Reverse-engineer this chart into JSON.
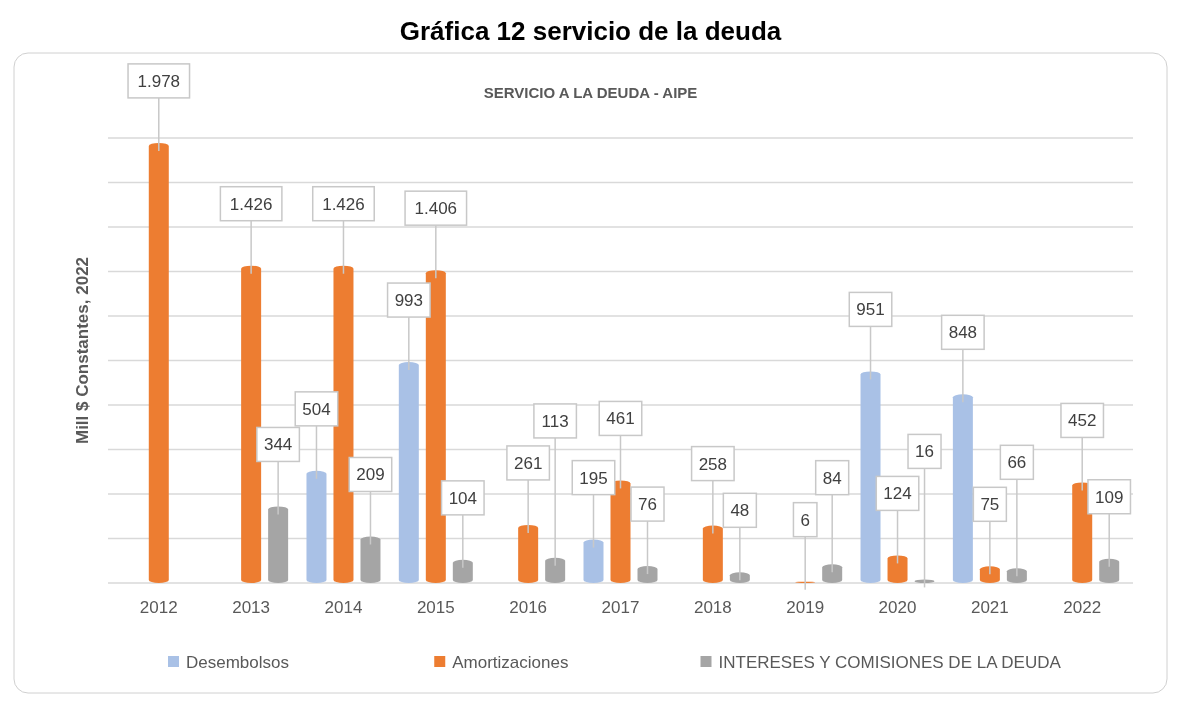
{
  "chart_data": {
    "type": "bar",
    "title": "Gráfica 12 servicio de la deuda",
    "subtitle": "SERVICIO A LA DEUDA - AIPE",
    "ylabel": "Mill $ Constantes, 2022",
    "categories": [
      "2012",
      "2013",
      "2014",
      "2015",
      "2016",
      "2017",
      "2018",
      "2019",
      "2020",
      "2021",
      "2022"
    ],
    "series": [
      {
        "name": "Desembolsos",
        "color": "#a9c1e6",
        "values": [
          0,
          0,
          504,
          993,
          0,
          195,
          0,
          0,
          951,
          848,
          0
        ],
        "value_labels": [
          null,
          null,
          "504",
          "993",
          null,
          "195",
          null,
          null,
          "951",
          "848",
          null
        ]
      },
      {
        "name": "Amortizaciones",
        "color": "#ed7d31",
        "values": [
          1978,
          1426,
          1426,
          1406,
          261,
          461,
          258,
          6,
          124,
          75,
          452
        ],
        "value_labels": [
          "1.978",
          "1.426",
          "1.426",
          "1.406",
          "261",
          "461",
          "258",
          "6",
          "124",
          "75",
          "452"
        ]
      },
      {
        "name": "INTERESES Y COMISIONES DE LA DEUDA",
        "color": "#a5a5a5",
        "values": [
          0,
          344,
          209,
          104,
          113,
          76,
          48,
          84,
          16,
          66,
          109
        ],
        "value_labels": [
          null,
          "344",
          "209",
          "104",
          "113",
          "76",
          "48",
          "84",
          "16",
          "66",
          "109"
        ]
      }
    ],
    "ylim": [
      0,
      2000
    ],
    "yticks": [
      {
        "value": 0,
        "label": null
      },
      {
        "value": 200,
        "label": null
      },
      {
        "value": 400,
        "label": null
      },
      {
        "value": 600,
        "label": null
      },
      {
        "value": 800,
        "label": null
      },
      {
        "value": 1000,
        "label": null
      },
      {
        "value": 1200,
        "label": null
      },
      {
        "value": 1400,
        "label": null
      },
      {
        "value": 1600,
        "label": null
      },
      {
        "value": 1800,
        "label": null
      },
      {
        "value": 2000,
        "label": null
      }
    ],
    "tick_labels": "x",
    "grid": "y",
    "legend": "bottom"
  }
}
